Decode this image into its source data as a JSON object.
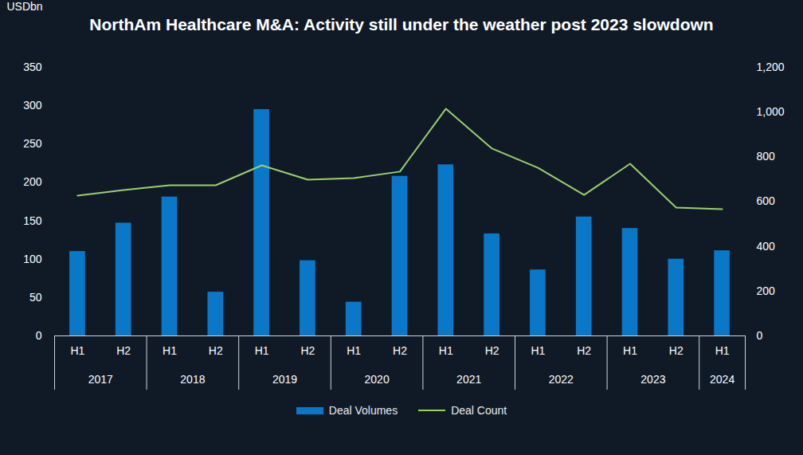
{
  "chart_data": {
    "type": "bar",
    "title": "NorthAm Healthcare M&A: Activity still under the weather post 2023 slowdown",
    "y_label": "USDbn",
    "categories": [
      "H1",
      "H2",
      "H1",
      "H2",
      "H1",
      "H2",
      "H1",
      "H2",
      "H1",
      "H2",
      "H1",
      "H2",
      "H1",
      "H2",
      "H1"
    ],
    "category_groups": [
      "2017",
      "2017",
      "2018",
      "2018",
      "2019",
      "2019",
      "2020",
      "2020",
      "2021",
      "2021",
      "2022",
      "2022",
      "2023",
      "2023",
      "2024"
    ],
    "ylim": [
      0,
      350
    ],
    "yticks": [
      0,
      50,
      100,
      150,
      200,
      250,
      300,
      350
    ],
    "y2lim": [
      0,
      1200
    ],
    "y2ticks": [
      0,
      200,
      400,
      600,
      800,
      {
        "value": 1000,
        "label": "1,000"
      },
      {
        "value": 1200,
        "label": "1,200"
      }
    ],
    "series": [
      {
        "name": "Deal Volumes",
        "type": "bar",
        "color": "#0a78c8",
        "values": [
          110,
          147,
          181,
          57,
          295,
          98,
          44,
          208,
          223,
          133,
          86,
          155,
          140,
          100,
          111
        ]
      },
      {
        "name": "Deal Count",
        "type": "line",
        "axis": "y2",
        "color": "#9bcf6b",
        "values": [
          627,
          652,
          673,
          673,
          762,
          698,
          705,
          734,
          1015,
          837,
          751,
          630,
          769,
          573,
          566
        ]
      }
    ],
    "legend": "bottom",
    "grid": false
  }
}
